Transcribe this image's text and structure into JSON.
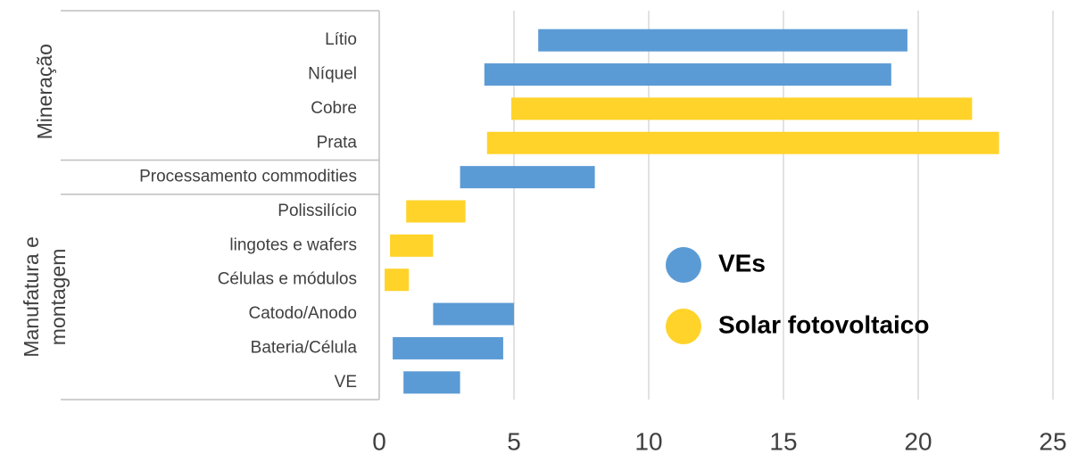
{
  "chart_data": {
    "type": "floating-bar",
    "categories": [
      "Lítio",
      "Níquel",
      "Cobre",
      "Prata",
      "Processamento commodities",
      "Polissilício",
      "lingotes e wafers",
      "Células e módulos",
      "Catodo/Anodo",
      "Bateria/Célula",
      "VE"
    ],
    "groups": [
      {
        "label_lines": [
          "Mineração"
        ],
        "from": 0,
        "to": 3
      },
      {
        "label_lines": [
          "Manufatura e",
          "montagem"
        ],
        "from": 5,
        "to": 10
      }
    ],
    "series": [
      {
        "name": "VEs",
        "color": "#5b9bd5",
        "start": [
          5.9,
          3.9,
          null,
          null,
          3.0,
          null,
          null,
          null,
          2.0,
          0.5,
          0.9
        ],
        "end": [
          19.6,
          19.0,
          null,
          null,
          8.0,
          null,
          null,
          null,
          5.0,
          4.6,
          3.0
        ]
      },
      {
        "name": "Solar fotovoltaico",
        "color": "#ffd32a",
        "start": [
          null,
          null,
          4.9,
          4.0,
          null,
          1.0,
          0.4,
          0.2,
          null,
          null,
          null
        ],
        "end": [
          null,
          null,
          22.0,
          23.0,
          null,
          3.2,
          2.0,
          1.1,
          null,
          null,
          null
        ]
      }
    ],
    "xlim": [
      0,
      25
    ],
    "xticks": [
      0,
      5,
      10,
      15,
      20,
      25
    ],
    "grid": true
  }
}
